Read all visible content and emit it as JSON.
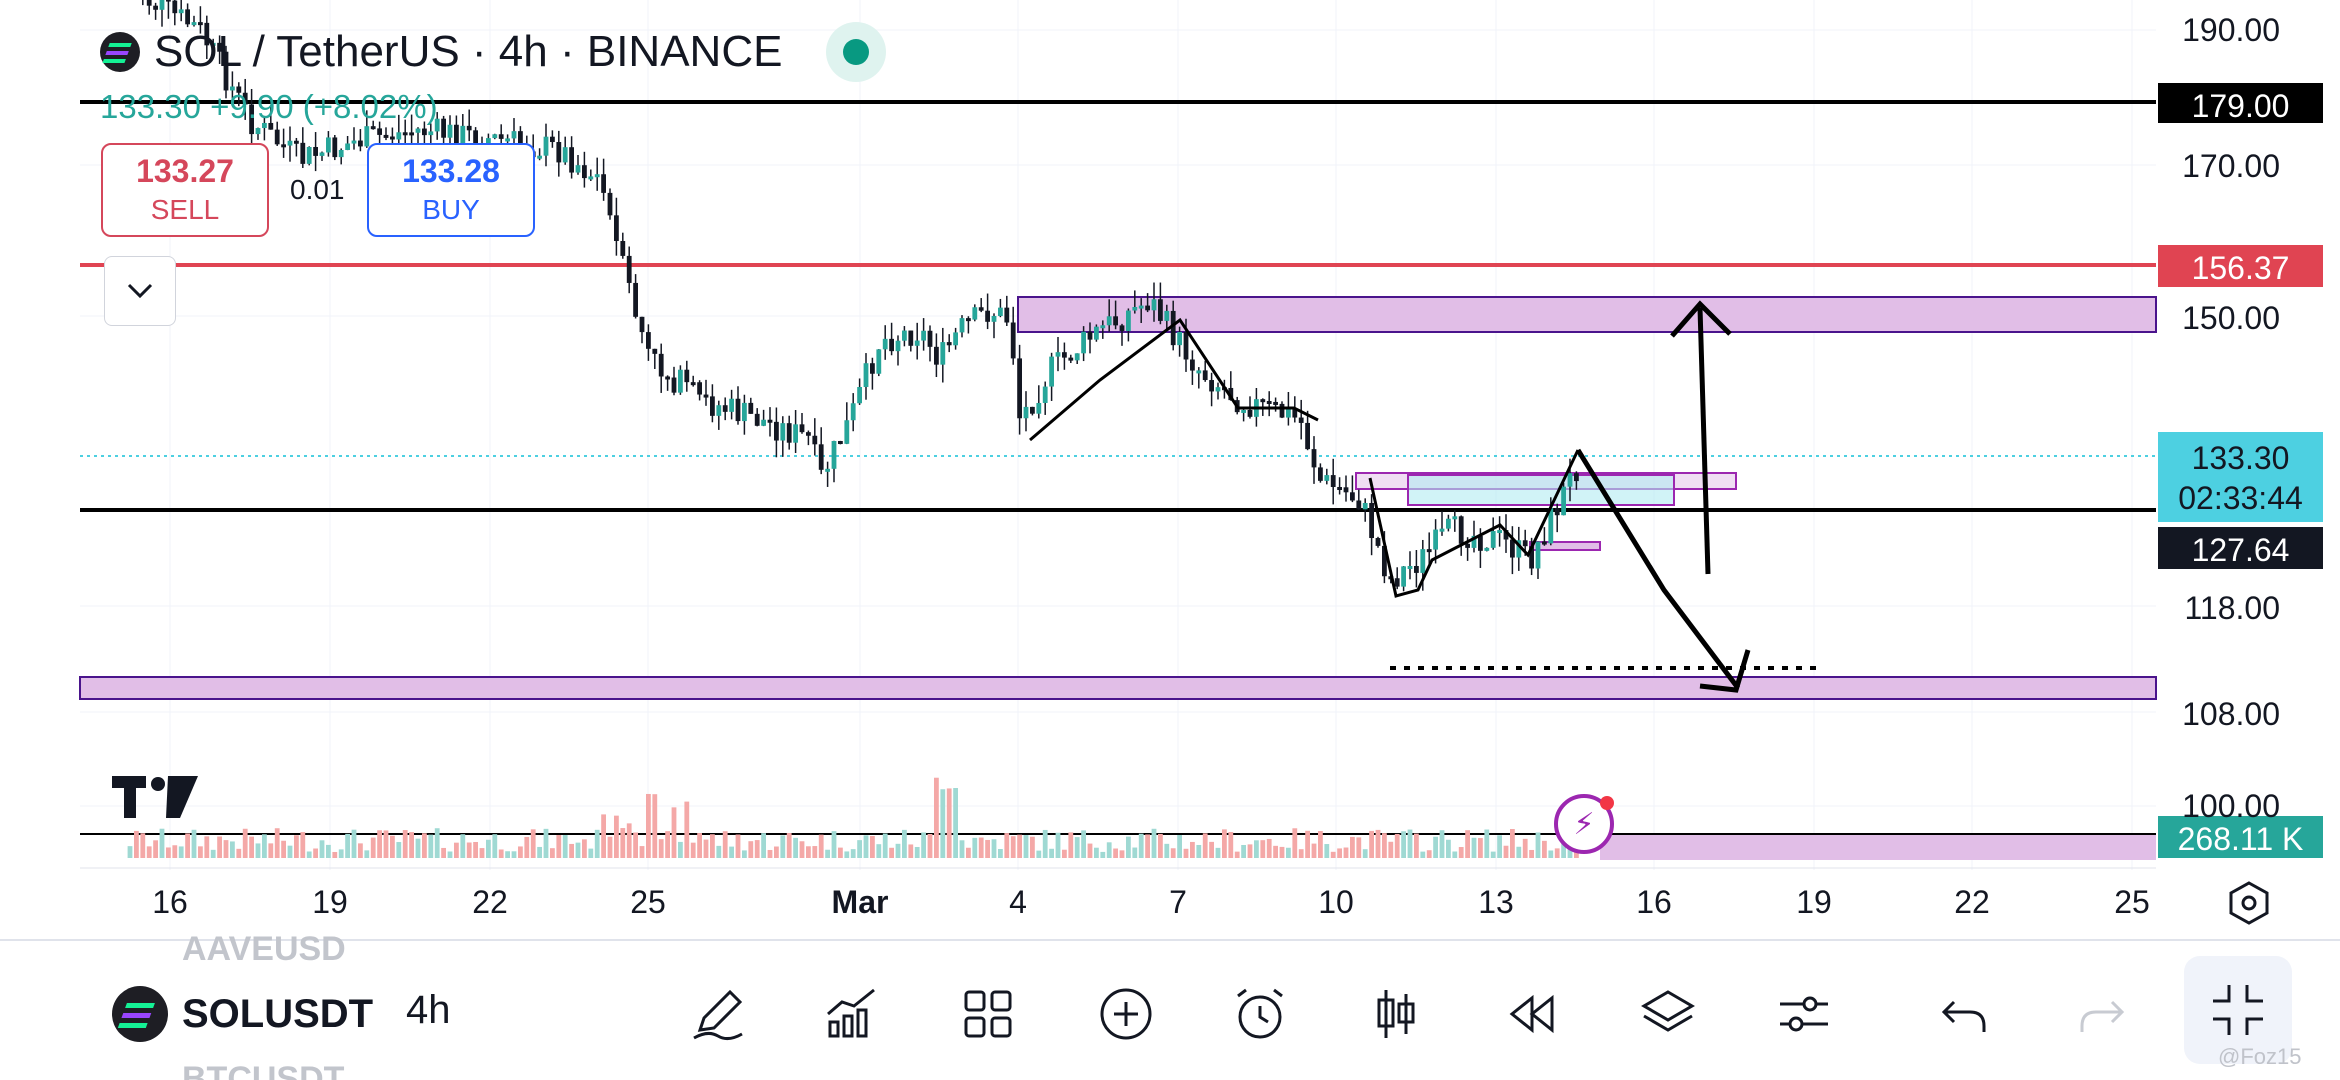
{
  "header": {
    "title": "SOL / TetherUS · 4h · BINANCE",
    "change": "133.30 +9.90 (+8.02%)"
  },
  "trade": {
    "sell_price": "133.27",
    "sell_label": "SELL",
    "buy_price": "133.28",
    "buy_label": "BUY",
    "spread": "0.01"
  },
  "price_axis": {
    "ticks": [
      "190.00",
      "170.00",
      "150.00",
      "118.00",
      "108.00",
      "100.00"
    ],
    "tags": {
      "resistance_high": "179.00",
      "alert_line": "156.37",
      "current_price": "133.30",
      "countdown": "02:33:44",
      "support": "127.64",
      "volume": "268.11 K"
    }
  },
  "time_axis": {
    "ticks": [
      "16",
      "19",
      "22",
      "25",
      "Mar",
      "4",
      "7",
      "10",
      "13",
      "16",
      "19",
      "22",
      "25"
    ]
  },
  "bottom_bar": {
    "symbol": "SOLUSDT",
    "symbol_above": "AAVEUSD",
    "symbol_below": "BTCUSDT",
    "interval": "4h"
  },
  "icons": {
    "tools": [
      "pencil-icon",
      "indicators-icon",
      "layout-icon",
      "add-icon",
      "alarm-icon",
      "candles-icon",
      "replay-icon",
      "layers-icon",
      "settings-sliders-icon",
      "undo-icon",
      "redo-icon",
      "fullscreen-exit-icon"
    ]
  },
  "colors": {
    "up": "#26a69a",
    "down": "#ef5350",
    "alert": "#d5475b",
    "zone": "#e1bee7",
    "price_tag": "#4dd0e1"
  },
  "watermark": "@Foz15",
  "chart_data": {
    "type": "candlestick",
    "symbol": "SOL / TetherUS",
    "interval": "4h",
    "x": [
      "16",
      "19",
      "22",
      "25",
      "Mar",
      "4",
      "7",
      "10",
      "13",
      "16",
      "19",
      "22",
      "25"
    ],
    "ylim": [
      100,
      192
    ],
    "horizontal_lines": [
      179.0,
      156.37,
      127.64
    ],
    "zones": [
      [
        148.5,
        151.5
      ],
      [
        108.6,
        110.6
      ]
    ],
    "last_price": 133.3,
    "volume_last": "268.11 K"
  }
}
